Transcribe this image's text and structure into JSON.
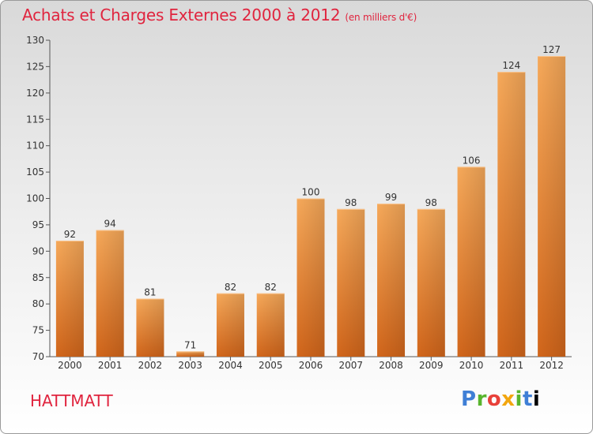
{
  "header": {
    "title": "Achats et Charges Externes 2000 à 2012",
    "unit": "(en milliers d'€)"
  },
  "footer": {
    "commune": "HATTMATT",
    "logo_text": "Proxiti"
  },
  "colors": {
    "title": "#e0243e",
    "bar_top": "#f6a95a",
    "bar_bottom": "#d2661b",
    "axis": "#555555"
  },
  "chart_data": {
    "type": "bar",
    "categories": [
      "2000",
      "2001",
      "2002",
      "2003",
      "2004",
      "2005",
      "2006",
      "2007",
      "2008",
      "2009",
      "2010",
      "2011",
      "2012"
    ],
    "values": [
      92,
      94,
      81,
      71,
      82,
      82,
      100,
      98,
      99,
      98,
      106,
      124,
      127
    ],
    "title": "Achats et Charges Externes 2000 à 2012",
    "subtitle": "(en milliers d'€)",
    "xlabel": "",
    "ylabel": "",
    "ylim": [
      70,
      130
    ],
    "yticks": [
      70,
      75,
      80,
      85,
      90,
      95,
      100,
      105,
      110,
      115,
      120,
      125,
      130
    ],
    "grid": false,
    "legend": "none"
  }
}
